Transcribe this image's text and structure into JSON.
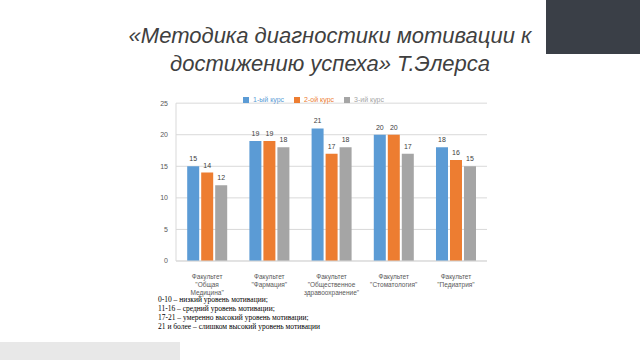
{
  "chart_data": {
    "type": "bar",
    "title": "«Методика диагностики мотивации к достижению успеха» Т.Элерса",
    "categories": [
      "Факультет \"Общая Медицина\"",
      "Факультет \"Фармация\"",
      "Факультет \"Общественное здравоохранение\"",
      "Факультет \"Стоматология\"",
      "Факультет \"Педиатрия\""
    ],
    "series": [
      {
        "name": "1-ый курс",
        "color": "#5b9bd5",
        "values": [
          15,
          19,
          21,
          20,
          18
        ]
      },
      {
        "name": "2-ой курс",
        "color": "#ed7d31",
        "values": [
          14,
          19,
          17,
          20,
          16
        ]
      },
      {
        "name": "3-ий курс",
        "color": "#a5a5a5",
        "values": [
          12,
          18,
          18,
          17,
          15
        ]
      }
    ],
    "ylim": [
      0,
      25
    ],
    "yticks": [
      0,
      5,
      10,
      15,
      20,
      25
    ],
    "grid": true,
    "data_labels": true,
    "legend": "top",
    "annotations": [
      "0-10 – низкий уровень мотивации;",
      "11-16 – средний уровень мотивации;",
      "17-21 – умеренно высокий уровень мотивации;",
      "21 и более – слишком высокий уровень мотивации"
    ]
  }
}
